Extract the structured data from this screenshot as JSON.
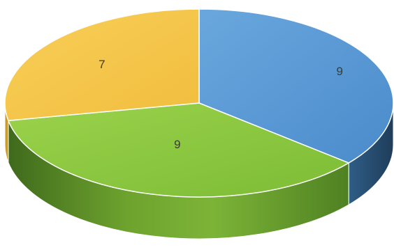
{
  "chart_data": {
    "type": "pie",
    "style": "3d",
    "categories": [
      "",
      "",
      ""
    ],
    "values": [
      9,
      9,
      7
    ],
    "data_labels": [
      "9",
      "9",
      "7"
    ],
    "colors": [
      "#5b9bd5",
      "#8cc63f",
      "#f5c64a"
    ],
    "title": "",
    "legend": "none"
  }
}
